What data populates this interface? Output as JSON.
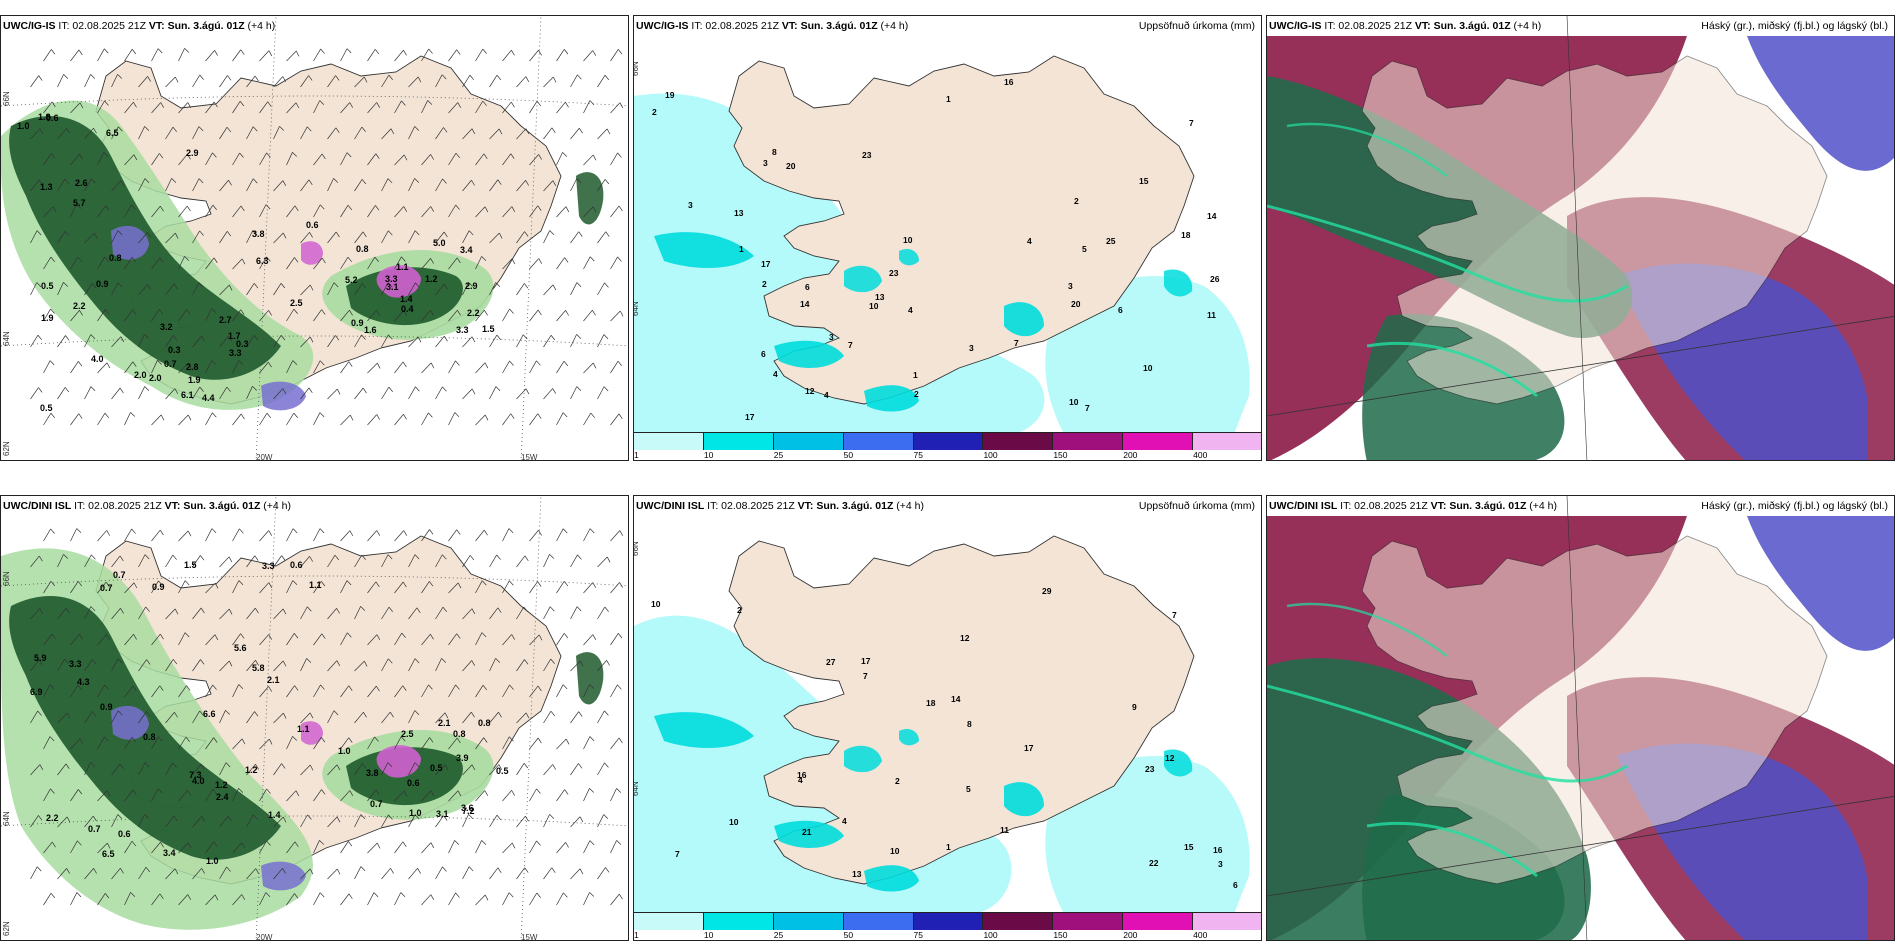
{
  "rows": [
    {
      "model": "UWC/IG-IS",
      "it": "IT: 02.08.2025 21Z",
      "vt_label": "VT:",
      "vt": "Sun. 3.ágú. 01Z",
      "lead": "(+4 h)",
      "wind_labels": [
        "2.0",
        "0.3",
        "1.2",
        "1.0",
        "0.6",
        "0.9",
        "0.7",
        "0.5",
        "2.9",
        "2.6",
        "2.2",
        "1.5",
        "2.0",
        "4.4",
        "3.4",
        "1.9",
        "1.7",
        "3.3",
        "2.5",
        "3.8",
        "0.8",
        "6.3",
        "5.7",
        "3.1",
        "2.8",
        "4.0",
        "5.0",
        "6.1",
        "6.5",
        "3.3",
        "1.8",
        "2.7",
        "2.2",
        "3.2",
        "3.3",
        "1.1",
        "0.6",
        "0.3",
        "1.4",
        "0.9",
        "0.5",
        "1.6",
        "0.8",
        "1.9",
        "5.2",
        "2.9",
        "1.3",
        "0.4"
      ],
      "precip_labels": [
        "3",
        "3",
        "6",
        "2",
        "3",
        "1",
        "14",
        "10",
        "6",
        "7",
        "5",
        "7",
        "12",
        "13",
        "10",
        "20",
        "8",
        "7",
        "7",
        "1",
        "17",
        "23",
        "25",
        "16",
        "4",
        "10",
        "18",
        "23",
        "6",
        "4",
        "26",
        "20",
        "19",
        "10",
        "11",
        "17",
        "13",
        "4",
        "15",
        "14",
        "2",
        "2",
        "2",
        "3",
        "1",
        "4",
        "3"
      ]
    },
    {
      "model": "UWC/DINI ISL",
      "it": "IT: 02.08.2025 21Z",
      "vt_label": "VT:",
      "vt": "Sun. 3.ágú. 01Z",
      "lead": "(+4 h)",
      "wind_labels": [
        "1.0",
        "0.7",
        "0.7",
        "3.3",
        "5.8",
        "3.1",
        "1.1",
        "0.9",
        "0.6",
        "0.7",
        "2.2",
        "1.0",
        "0.8",
        "7.3",
        "3.9",
        "3.3",
        "6.9",
        "0.8",
        "1.2",
        "2.1",
        "3.6",
        "4.0",
        "6.5",
        "7.2",
        "6.6",
        "5.6",
        "3.8",
        "4.3",
        "3.4",
        "2.5",
        "2.4",
        "0.6",
        "0.8",
        "0.6",
        "0.7",
        "1.0",
        "1.5",
        "5.9",
        "0.5",
        "1.2",
        "0.9",
        "0.5",
        "1.1",
        "1.4",
        "2.1"
      ],
      "precip_labels": [
        "7",
        "11",
        "12",
        "5",
        "2",
        "14",
        "16",
        "29",
        "21",
        "10",
        "6",
        "7",
        "10",
        "18",
        "15",
        "17",
        "16",
        "4",
        "23",
        "7",
        "10",
        "13",
        "22",
        "17",
        "4",
        "8",
        "9",
        "12",
        "27",
        "1",
        "3",
        "2"
      ]
    }
  ],
  "precip_title": "Uppsöfnuð úrkoma (mm)",
  "cloud_title": "Háský (gr.), miðský (fj.bl.) og lágský (bl.)",
  "colorbar": {
    "ticks": [
      "1",
      "10",
      "25",
      "50",
      "75",
      "100",
      "150",
      "200",
      "400"
    ],
    "colors": [
      "#c8fafa",
      "#00e6e6",
      "#00c0e6",
      "#3c6cf0",
      "#2020b4",
      "#6a0a46",
      "#a0107c",
      "#e010b4",
      "#f0b4f0"
    ]
  },
  "axis": {
    "lon_labels": [
      "20W",
      "15W"
    ],
    "lat_labels": [
      "66N",
      "64N",
      "62N"
    ]
  },
  "colors": {
    "land": "#f3e4d6",
    "sea_precip": "#b4fafa",
    "precip_cyan": "#00dcdc",
    "precip_green_light": "#a8dca0",
    "precip_green_dark": "#1e5a2c",
    "precip_blue": "#7870d0",
    "precip_magenta": "#d060d0",
    "cloud_high": "#1f6b4a",
    "cloud_mid": "#8b1a46",
    "cloud_low": "#5050c8",
    "cloud_edge": "#20e0a0"
  }
}
